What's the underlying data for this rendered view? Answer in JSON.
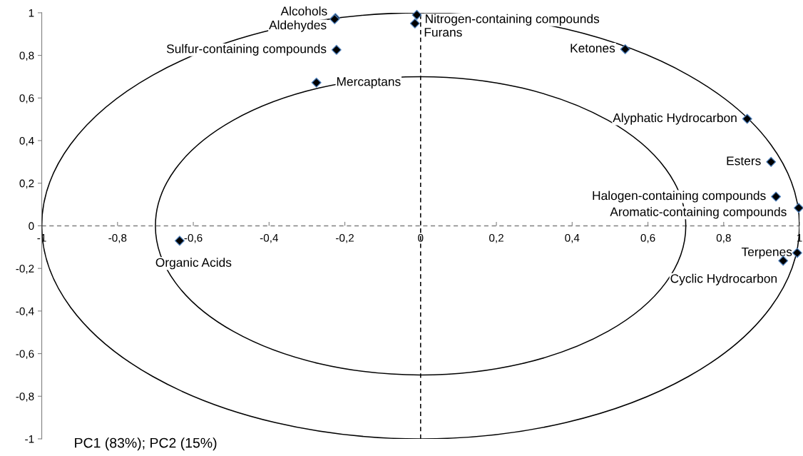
{
  "chart_data": {
    "type": "scatter",
    "marker": "diamond",
    "legend": false,
    "grid": false,
    "xlim": [
      -1,
      1
    ],
    "ylim": [
      -1,
      1
    ],
    "xticks": [
      -1,
      {
        "value": -0.8,
        "label": "-0,8"
      },
      {
        "value": -0.6,
        "label": "-0,6"
      },
      {
        "value": -0.4,
        "label": "-0,4"
      },
      {
        "value": -0.2,
        "label": "-0,2"
      },
      0,
      {
        "value": 0.2,
        "label": "0,2"
      },
      {
        "value": 0.4,
        "label": "0,4"
      },
      {
        "value": 0.6,
        "label": "0,6"
      },
      {
        "value": 0.8,
        "label": "0,8"
      },
      1
    ],
    "yticks": [
      -1,
      {
        "value": -0.8,
        "label": "-0,8"
      },
      {
        "value": -0.6,
        "label": "-0,6"
      },
      {
        "value": -0.4,
        "label": "-0,4"
      },
      {
        "value": -0.2,
        "label": "-0,2"
      },
      0,
      {
        "value": 0.2,
        "label": "0,2"
      },
      {
        "value": 0.4,
        "label": "0,4"
      },
      {
        "value": 0.6,
        "label": "0,6"
      },
      {
        "value": 0.8,
        "label": "0,8"
      },
      1
    ],
    "ref_lines": [
      {
        "axis": "y",
        "value": 0,
        "color": "#808080",
        "line_style": "dashed"
      },
      {
        "axis": "x",
        "value": 0,
        "color": "#000000",
        "line_style": "dashed"
      }
    ],
    "annotations": [
      "PC1 (83%); PC2 (15%)"
    ],
    "series": [
      {
        "name": "Alcohols",
        "color": "#000000",
        "x": [
          -0.225
        ],
        "values": [
          0.975
        ]
      },
      {
        "name": "Aldehydes",
        "color": "#000000",
        "x": [
          -0.227
        ],
        "values": [
          0.97
        ]
      },
      {
        "name": "Nitrogen-containing compounds",
        "color": "#000000",
        "x": [
          -0.01
        ],
        "values": [
          0.99
        ]
      },
      {
        "name": "Furans",
        "color": "#000000",
        "x": [
          -0.015
        ],
        "values": [
          0.95
        ]
      },
      {
        "name": "Sulfur-containing compounds",
        "color": "#000000",
        "x": [
          -0.222
        ],
        "values": [
          0.826
        ]
      },
      {
        "name": "Mercaptans",
        "color": "#000000",
        "x": [
          -0.275
        ],
        "values": [
          0.672
        ]
      },
      {
        "name": "Ketones",
        "color": "#000000",
        "x": [
          0.54
        ],
        "values": [
          0.829
        ]
      },
      {
        "name": "Alyphatic Hydrocarbon",
        "color": "#000000",
        "x": [
          0.862
        ],
        "values": [
          0.502
        ]
      },
      {
        "name": "Esters",
        "color": "#000000",
        "x": [
          0.925
        ],
        "values": [
          0.3
        ]
      },
      {
        "name": "Halogen-containing compounds",
        "color": "#000000",
        "x": [
          0.938
        ],
        "values": [
          0.137
        ]
      },
      {
        "name": "Aromatic-containing compounds",
        "color": "#000000",
        "x": [
          0.998
        ],
        "values": [
          0.084
        ]
      },
      {
        "name": "Terpenes",
        "color": "#000000",
        "x": [
          0.994
        ],
        "values": [
          -0.127
        ]
      },
      {
        "name": "Cyclic Hydrocarbon",
        "color": "#000000",
        "x": [
          0.957
        ],
        "values": [
          -0.164
        ]
      },
      {
        "name": "Organic Acids",
        "color": "#000000",
        "x": [
          -0.636
        ],
        "values": [
          -0.07
        ]
      }
    ]
  }
}
